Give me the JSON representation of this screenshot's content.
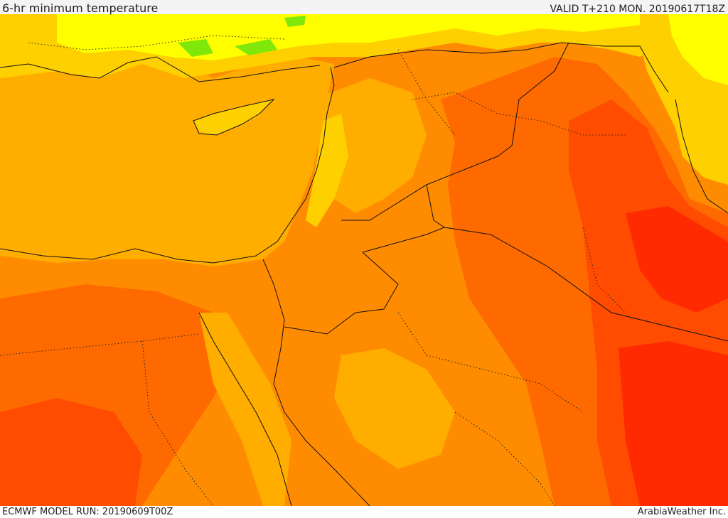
{
  "header": {
    "title": "6-hr minimum temperature",
    "valid": "VALID T+210 MON. 20190617T18Z"
  },
  "footer": {
    "model_run": "ECMWF MODEL RUN: 20190609T00Z",
    "credit": "ArabiaWeather Inc."
  },
  "colors": {
    "green": "#7fe80a",
    "yellow": "#ffff00",
    "yellow_orange": "#ffd000",
    "light_orange": "#ffae00",
    "orange": "#ff8c00",
    "dark_orange": "#ff6a00",
    "red_orange": "#ff4c00",
    "red": "#ff2a00",
    "border": "#111111"
  }
}
